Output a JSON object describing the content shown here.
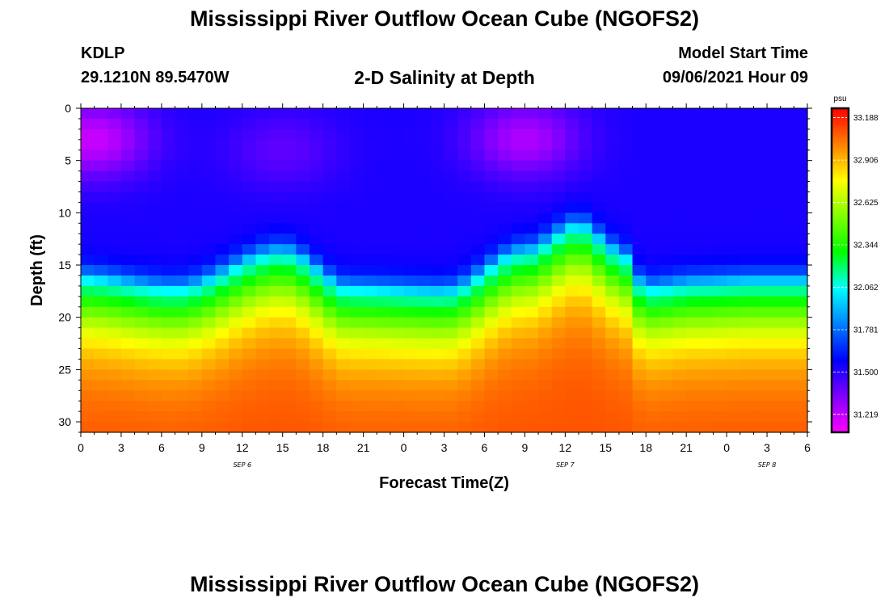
{
  "header": {
    "title": "Mississippi River Outflow Ocean Cube (NGOFS2)",
    "station_id": "KDLP",
    "station_coords": "29.1210N  89.5470W",
    "subtitle": "2-D Salinity at Depth",
    "model_label": "Model Start Time",
    "model_time": "09/06/2021 Hour 09"
  },
  "footer": {
    "title": "Mississippi River Outflow Ocean Cube (NGOFS2)"
  },
  "chart_data": {
    "type": "heatmap",
    "xlabel": "Forecast Time(Z)",
    "ylabel": "Depth (ft)",
    "x_range_hours": [
      0,
      54
    ],
    "ylim": [
      0,
      31
    ],
    "y_ticks": [
      0,
      5,
      10,
      15,
      20,
      25,
      30
    ],
    "x_ticks": [
      {
        "hour": 0,
        "label": "0"
      },
      {
        "hour": 3,
        "label": "3"
      },
      {
        "hour": 6,
        "label": "6"
      },
      {
        "hour": 9,
        "label": "9"
      },
      {
        "hour": 12,
        "label": "12"
      },
      {
        "hour": 15,
        "label": "15"
      },
      {
        "hour": 18,
        "label": "18"
      },
      {
        "hour": 21,
        "label": "21"
      },
      {
        "hour": 24,
        "label": "0"
      },
      {
        "hour": 27,
        "label": "3"
      },
      {
        "hour": 30,
        "label": "6"
      },
      {
        "hour": 33,
        "label": "9"
      },
      {
        "hour": 36,
        "label": "12"
      },
      {
        "hour": 39,
        "label": "15"
      },
      {
        "hour": 42,
        "label": "18"
      },
      {
        "hour": 45,
        "label": "21"
      },
      {
        "hour": 48,
        "label": "0"
      },
      {
        "hour": 51,
        "label": "3"
      },
      {
        "hour": 54,
        "label": "6"
      }
    ],
    "date_labels": [
      {
        "hour": 12,
        "label": "SEP 6"
      },
      {
        "hour": 36,
        "label": "SEP 7"
      },
      {
        "hour": 51,
        "label": "SEP 8"
      }
    ],
    "colorbar": {
      "unit": "psu",
      "min": 31.1,
      "max": 33.25,
      "labels": [
        "33.188",
        "32.906",
        "32.625",
        "32.344",
        "32.062",
        "31.781",
        "31.500",
        "31.219"
      ],
      "label_values": [
        33.188,
        32.906,
        32.625,
        32.344,
        32.062,
        31.781,
        31.5,
        31.219
      ],
      "colors": [
        "#ff00ff",
        "#8000ff",
        "#0000ff",
        "#0080ff",
        "#00ffff",
        "#00ff00",
        "#80ff00",
        "#ffff00",
        "#ff8000",
        "#ff0000"
      ]
    },
    "interface_depth_ft": [
      {
        "hour": 0,
        "depth": 16.5
      },
      {
        "hour": 7,
        "depth": 17.5
      },
      {
        "hour": 15,
        "depth": 14.0
      },
      {
        "hour": 20,
        "depth": 17.5
      },
      {
        "hour": 27,
        "depth": 17.8
      },
      {
        "hour": 33,
        "depth": 14.0
      },
      {
        "hour": 37,
        "depth": 11.5
      },
      {
        "hour": 40,
        "depth": 14.0
      },
      {
        "hour": 42,
        "depth": 17.5
      },
      {
        "hour": 46,
        "depth": 17.0
      },
      {
        "hour": 50,
        "depth": 16.8
      },
      {
        "hour": 54,
        "depth": 16.8
      }
    ],
    "surface_fresh_max": [
      {
        "hour": 1,
        "depth": 3,
        "salinity": 31.2
      },
      {
        "hour": 15,
        "depth": 4,
        "salinity": 31.4
      },
      {
        "hour": 33,
        "depth": 3,
        "salinity": 31.25
      }
    ],
    "deep_salinity_max": 33.1
  }
}
